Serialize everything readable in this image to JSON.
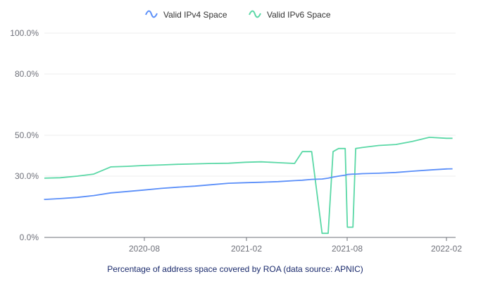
{
  "chart_data": {
    "type": "line",
    "title": "",
    "caption": "Percentage of address space covered by ROA (data source: APNIC)",
    "xlabel": "",
    "ylabel": "",
    "x_ticks": [
      "2020-08",
      "2021-02",
      "2021-08",
      "2022-02"
    ],
    "y_ticks": [
      "0.0%",
      "30.0%",
      "50.0%",
      "80.0%",
      "100.0%"
    ],
    "ylim": [
      0,
      100
    ],
    "y_scale": "piecewise",
    "grid": "horizontal",
    "legend_position": "top-center",
    "x_dates": [
      "2020-01-01",
      "2020-02-01",
      "2020-03-01",
      "2020-04-01",
      "2020-05-01",
      "2020-06-01",
      "2020-07-01",
      "2020-08-01",
      "2020-09-01",
      "2020-10-01",
      "2020-11-01",
      "2020-12-01",
      "2021-01-01",
      "2021-02-01",
      "2021-03-01",
      "2021-04-01",
      "2021-05-01",
      "2021-05-15",
      "2021-06-01",
      "2021-06-20",
      "2021-07-01",
      "2021-07-10",
      "2021-07-20",
      "2021-08-01",
      "2021-08-05",
      "2021-08-15",
      "2021-08-20",
      "2021-09-01",
      "2021-10-01",
      "2021-11-01",
      "2021-12-01",
      "2022-01-01",
      "2022-02-01",
      "2022-02-12"
    ],
    "series": [
      {
        "name": "Valid IPv4 Space",
        "color": "#5b8ff9",
        "values": [
          18.5,
          18.6,
          19.0,
          19.6,
          20.5,
          21.8,
          22.5,
          23.2,
          24.0,
          24.6,
          25.1,
          25.8,
          26.5,
          26.8,
          27.0,
          27.3,
          27.8,
          28.0,
          28.4,
          28.6,
          29.0,
          29.5,
          30.0,
          30.5,
          30.8,
          31.0,
          31.0,
          31.2,
          31.4,
          31.8,
          32.4,
          33.0,
          33.5,
          33.6
        ]
      },
      {
        "name": "Valid IPv6 Space",
        "color": "#5ad8a6",
        "values": [
          29.0,
          29.0,
          29.2,
          30.0,
          31.0,
          34.5,
          34.8,
          35.2,
          35.5,
          35.8,
          36.0,
          36.2,
          36.3,
          36.8,
          37.0,
          36.6,
          36.2,
          42.0,
          42.0,
          2.0,
          2.0,
          42.0,
          43.5,
          43.5,
          5.0,
          5.0,
          43.5,
          44.0,
          45.0,
          45.5,
          47.0,
          49.0,
          48.5,
          48.5
        ]
      }
    ]
  }
}
